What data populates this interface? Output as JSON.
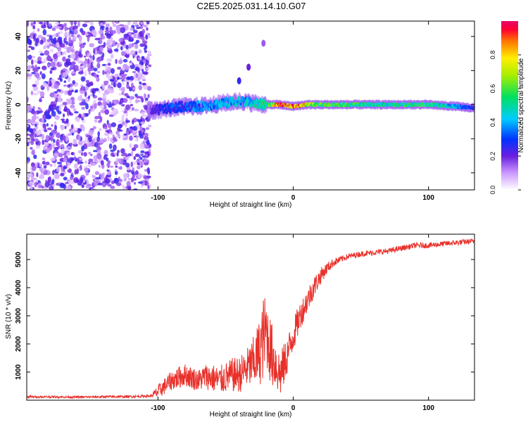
{
  "title": "C2E5.2025.031.14.10.G07",
  "colors": {
    "snr_line": "#e8302a",
    "axis": "#000000",
    "background": "#ffffff"
  },
  "chart_data": [
    {
      "type": "heatmap",
      "name": "spectrogram",
      "xlabel": "Height of straight line (km)",
      "ylabel": "Frequency (Hz)",
      "xlim": [
        -197,
        134
      ],
      "ylim": [
        -50,
        49
      ],
      "xticks": [
        -100,
        0,
        100
      ],
      "xtick_labels": [
        "-100",
        "0",
        "100"
      ],
      "yticks": [
        -40,
        -20,
        0,
        20,
        40
      ],
      "ytick_labels": [
        "-40",
        "-20",
        "0",
        "20",
        "40"
      ],
      "noise_region_x": [
        -197,
        -106
      ],
      "colorbar": {
        "label": "Normalized spectral amplitude",
        "range": [
          0.0,
          1.0
        ],
        "ticks": [
          0.0,
          0.2,
          0.4,
          0.6,
          0.8
        ],
        "tick_labels": [
          "0.0",
          "0.2",
          "0.4",
          "0.6",
          "0.8"
        ]
      },
      "ridge": {
        "x": [
          -107,
          -100,
          -90,
          -80,
          -70,
          -60,
          -50,
          -40,
          -30,
          -20,
          -10,
          0,
          10,
          20,
          40,
          60,
          80,
          100,
          120,
          134
        ],
        "freq": [
          -4,
          -3,
          -2,
          -1,
          -1,
          0,
          1,
          2,
          1,
          0,
          0,
          -1,
          0,
          0,
          0,
          0,
          0,
          0,
          -1,
          -2
        ],
        "amplitude": [
          0.15,
          0.25,
          0.3,
          0.3,
          0.35,
          0.35,
          0.4,
          0.4,
          0.45,
          0.5,
          0.9,
          0.95,
          0.7,
          0.6,
          0.55,
          0.5,
          0.5,
          0.55,
          0.4,
          0.25
        ]
      },
      "stray_features": [
        {
          "x": -22,
          "freq": 36,
          "amplitude": 0.15
        },
        {
          "x": -33,
          "freq": 22,
          "amplitude": 0.2
        },
        {
          "x": -40,
          "freq": 14,
          "amplitude": 0.25
        }
      ]
    },
    {
      "type": "line",
      "name": "snr",
      "xlabel": "Height of straight line (km)",
      "ylabel": "SNR (10 * v/v)",
      "xlim": [
        -197,
        134
      ],
      "ylim": [
        0,
        5900
      ],
      "xticks": [
        -100,
        0,
        100
      ],
      "xtick_labels": [
        "-100",
        "0",
        "100"
      ],
      "yticks": [
        1000,
        2000,
        3000,
        4000,
        5000
      ],
      "ytick_labels": [
        "1000",
        "2000",
        "3000",
        "4000",
        "5000"
      ],
      "series": [
        {
          "name": "SNR",
          "x": [
            -197,
            -180,
            -160,
            -140,
            -120,
            -105,
            -100,
            -95,
            -90,
            -85,
            -80,
            -75,
            -70,
            -65,
            -60,
            -55,
            -50,
            -45,
            -40,
            -35,
            -30,
            -25,
            -22,
            -20,
            -17,
            -15,
            -12,
            -10,
            -8,
            -5,
            0,
            5,
            10,
            15,
            20,
            25,
            30,
            35,
            40,
            45,
            50,
            60,
            70,
            80,
            90,
            100,
            110,
            120,
            134
          ],
          "values": [
            120,
            120,
            110,
            120,
            130,
            150,
            300,
            500,
            700,
            800,
            900,
            800,
            700,
            850,
            800,
            700,
            800,
            900,
            900,
            1100,
            1300,
            1700,
            2200,
            2500,
            1800,
            1500,
            1200,
            900,
            1100,
            1500,
            2300,
            3000,
            3500,
            4000,
            4400,
            4700,
            4900,
            5000,
            5100,
            5150,
            5200,
            5250,
            5300,
            5400,
            5500,
            5500,
            5550,
            5600,
            5650
          ],
          "noise": [
            40,
            40,
            40,
            40,
            40,
            50,
            250,
            300,
            350,
            400,
            400,
            400,
            400,
            450,
            500,
            500,
            550,
            600,
            650,
            700,
            900,
            1200,
            1500,
            1300,
            1200,
            1100,
            900,
            900,
            800,
            700,
            600,
            500,
            450,
            400,
            300,
            200,
            150,
            120,
            100,
            100,
            100,
            100,
            100,
            100,
            100,
            100,
            100,
            100,
            100
          ]
        }
      ]
    }
  ]
}
